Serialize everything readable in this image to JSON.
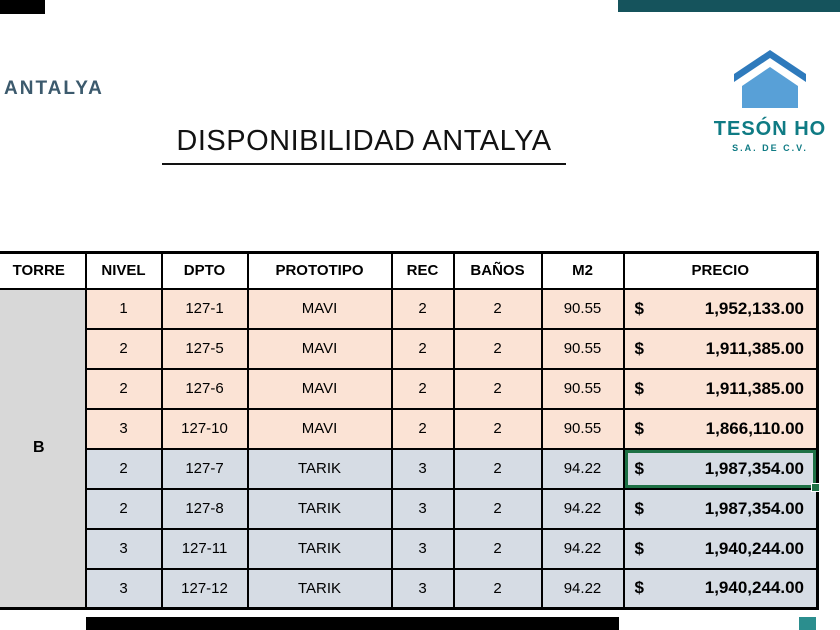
{
  "brand": {
    "wordmark": "ANTALYA"
  },
  "title": "DISPONIBILIDAD ANTALYA",
  "logo": {
    "name": "TESÓN HO",
    "subtitle": "S.A. DE C.V."
  },
  "table": {
    "columns": [
      "TORRE",
      "NIVEL",
      "DPTO",
      "PROTOTIPO",
      "REC",
      "BAÑOS",
      "M2",
      "PRECIO"
    ],
    "torre_label": "B",
    "currency_symbol": "$",
    "rows": [
      {
        "nivel": "1",
        "dpto": "127-1",
        "prototipo": "MAVI",
        "rec": "2",
        "banos": "2",
        "m2": "90.55",
        "precio": "1,952,133.00",
        "style": "mavi"
      },
      {
        "nivel": "2",
        "dpto": "127-5",
        "prototipo": "MAVI",
        "rec": "2",
        "banos": "2",
        "m2": "90.55",
        "precio": "1,911,385.00",
        "style": "mavi"
      },
      {
        "nivel": "2",
        "dpto": "127-6",
        "prototipo": "MAVI",
        "rec": "2",
        "banos": "2",
        "m2": "90.55",
        "precio": "1,911,385.00",
        "style": "mavi"
      },
      {
        "nivel": "3",
        "dpto": "127-10",
        "prototipo": "MAVI",
        "rec": "2",
        "banos": "2",
        "m2": "90.55",
        "precio": "1,866,110.00",
        "style": "mavi"
      },
      {
        "nivel": "2",
        "dpto": "127-7",
        "prototipo": "TARIK",
        "rec": "3",
        "banos": "2",
        "m2": "94.22",
        "precio": "1,987,354.00",
        "style": "tarik",
        "selected": true
      },
      {
        "nivel": "2",
        "dpto": "127-8",
        "prototipo": "TARIK",
        "rec": "3",
        "banos": "2",
        "m2": "94.22",
        "precio": "1,987,354.00",
        "style": "tarik"
      },
      {
        "nivel": "3",
        "dpto": "127-11",
        "prototipo": "TARIK",
        "rec": "3",
        "banos": "2",
        "m2": "94.22",
        "precio": "1,940,244.00",
        "style": "tarik"
      },
      {
        "nivel": "3",
        "dpto": "127-12",
        "prototipo": "TARIK",
        "rec": "3",
        "banos": "2",
        "m2": "94.22",
        "precio": "1,940,244.00",
        "style": "tarik"
      }
    ]
  },
  "colors": {
    "mavi_row": "#fbe3d5",
    "tarik_row": "#d6dce4",
    "torre_cell": "#d8d8d8",
    "selection_green": "#1e7145",
    "logo_teal": "#0f7b84",
    "brand_blue_gray": "#3c5a6d",
    "top_right_bar": "#15535c"
  }
}
